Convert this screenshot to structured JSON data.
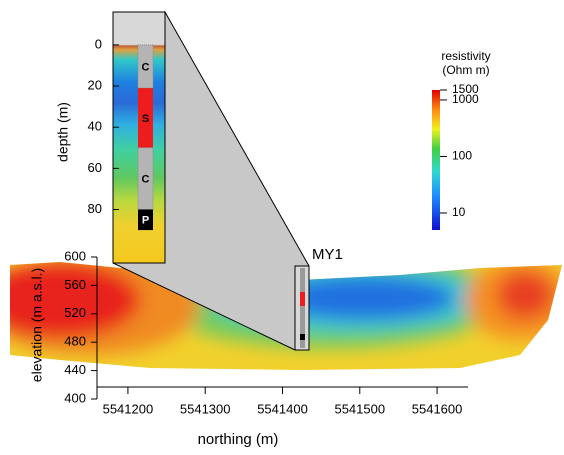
{
  "chart_data": [
    {
      "type": "section",
      "xlabel": "northing (m)",
      "ylabel": "elevation (m a.s.l.)",
      "xlim": [
        5541160,
        5541640
      ],
      "xticks": [
        5541200,
        5541300,
        5541400,
        5541500,
        5541600
      ],
      "ylim": [
        400,
        600
      ],
      "yticks": [
        400,
        440,
        480,
        520,
        560,
        600
      ],
      "annotation": "MY1"
    },
    {
      "type": "borehole",
      "ylabel": "depth (m)",
      "ylim": [
        -16,
        106
      ],
      "inverted": true,
      "yticks": [
        0,
        20,
        40,
        60,
        80
      ],
      "layers": [
        {
          "label": "C",
          "top": 0,
          "bottom": 21,
          "color": "#b4b4b4"
        },
        {
          "label": "S",
          "top": 21,
          "bottom": 50,
          "color": "#ee1c1c"
        },
        {
          "label": "C",
          "top": 50,
          "bottom": 80,
          "color": "#b4b4b4"
        },
        {
          "label": "P",
          "top": 80,
          "bottom": 90,
          "color": "#000000"
        }
      ]
    },
    {
      "type": "colorbar",
      "title": [
        "resistivity",
        "(Ohm m)"
      ],
      "log": true,
      "lim": [
        5,
        1500
      ],
      "ticks": [
        1500,
        1000,
        100,
        10
      ]
    }
  ]
}
